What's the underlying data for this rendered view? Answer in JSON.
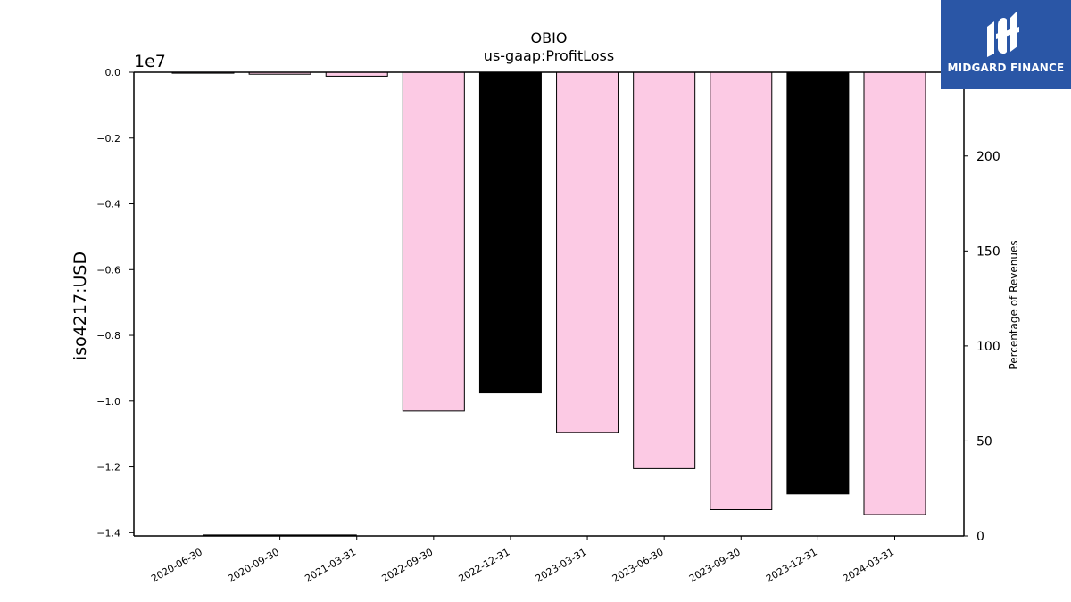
{
  "chart_data": {
    "type": "bar",
    "title": "OBIO",
    "subtitle": "us-gaap:ProfitLoss",
    "ylabel": "iso4217:USD",
    "y2label": "Percentage of Revenues",
    "y_offset_label": "1e7",
    "ylim": [
      -14100000,
      0
    ],
    "y2lim": [
      0,
      244
    ],
    "yticks": [
      0.0,
      -0.2,
      -0.4,
      -0.6,
      -0.8,
      -1.0,
      -1.2,
      -1.4
    ],
    "yticks_labels": [
      "0.0",
      "−0.2",
      "−0.4",
      "−0.6",
      "−0.8",
      "−1.0",
      "−1.2",
      "−1.4"
    ],
    "y2ticks": [
      "0",
      "50",
      "100",
      "150",
      "200"
    ],
    "categories": [
      "2020-06-30",
      "2020-09-30",
      "2021-03-31",
      "2022-09-30",
      "2022-12-31",
      "2023-03-31",
      "2023-06-30",
      "2023-09-30",
      "2023-12-31",
      "2024-03-31"
    ],
    "values": [
      -30000,
      -60000,
      -120000,
      -10300000,
      -9750000,
      -10950000,
      -12050000,
      -13300000,
      -12820000,
      -13450000
    ],
    "bar_colors": [
      "#fccae4",
      "#fccae4",
      "#fccae4",
      "#fccae4",
      "#000000",
      "#fccae4",
      "#fccae4",
      "#fccae4",
      "#000000",
      "#fccae4"
    ],
    "pct_line_values": [
      0.4,
      0.4,
      0.4
    ],
    "grid": false
  },
  "logo": {
    "text": "MIDGARD FINANCE",
    "background": "#2a56a6"
  }
}
